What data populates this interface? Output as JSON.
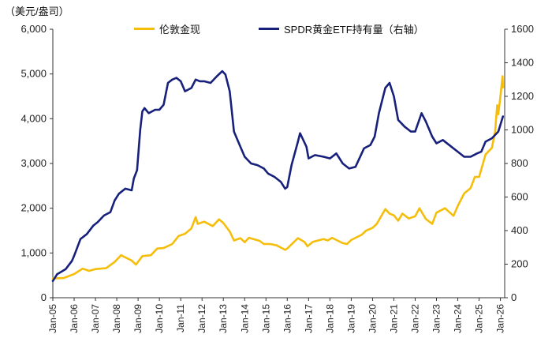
{
  "chart_data": {
    "type": "line",
    "unit_label": "（美元/盎司）",
    "x_ticks": [
      "Jan-05",
      "Jan-06",
      "Jan-07",
      "Jan-08",
      "Jan-09",
      "Jan-10",
      "Jan-11",
      "Jan-12",
      "Jan-13",
      "Jan-14",
      "Jan-15",
      "Jan-16",
      "Jan-17",
      "Jan-18",
      "Jan-19",
      "Jan-20",
      "Jan-21",
      "Jan-22",
      "Jan-23",
      "Jan-24",
      "Jan-25",
      "Jan-26"
    ],
    "x_range": [
      2005.0,
      2026.2
    ],
    "y_left": {
      "range": [
        0,
        6000
      ],
      "ticks": [
        "0",
        "1,000",
        "2,000",
        "3,000",
        "4,000",
        "5,000",
        "6,000"
      ]
    },
    "y_right": {
      "range": [
        0,
        1600
      ],
      "ticks": [
        "0",
        "200",
        "400",
        "600",
        "800",
        "1000",
        "1200",
        "1400",
        "1600"
      ]
    },
    "series": [
      {
        "name": "伦敦金现",
        "axis": "left",
        "color": "#F5BE0B",
        "points": [
          [
            2005.0,
            430
          ],
          [
            2005.5,
            440
          ],
          [
            2006.0,
            530
          ],
          [
            2006.4,
            650
          ],
          [
            2006.7,
            600
          ],
          [
            2007.0,
            640
          ],
          [
            2007.5,
            660
          ],
          [
            2007.9,
            800
          ],
          [
            2008.2,
            950
          ],
          [
            2008.7,
            830
          ],
          [
            2008.9,
            740
          ],
          [
            2009.2,
            930
          ],
          [
            2009.6,
            950
          ],
          [
            2009.9,
            1100
          ],
          [
            2010.2,
            1110
          ],
          [
            2010.6,
            1200
          ],
          [
            2010.9,
            1380
          ],
          [
            2011.2,
            1430
          ],
          [
            2011.5,
            1550
          ],
          [
            2011.7,
            1800
          ],
          [
            2011.8,
            1650
          ],
          [
            2012.1,
            1700
          ],
          [
            2012.5,
            1600
          ],
          [
            2012.8,
            1750
          ],
          [
            2013.0,
            1670
          ],
          [
            2013.3,
            1480
          ],
          [
            2013.5,
            1280
          ],
          [
            2013.8,
            1330
          ],
          [
            2014.0,
            1240
          ],
          [
            2014.2,
            1340
          ],
          [
            2014.7,
            1270
          ],
          [
            2014.9,
            1200
          ],
          [
            2015.2,
            1200
          ],
          [
            2015.5,
            1170
          ],
          [
            2015.9,
            1070
          ],
          [
            2016.0,
            1100
          ],
          [
            2016.5,
            1330
          ],
          [
            2016.8,
            1250
          ],
          [
            2016.95,
            1150
          ],
          [
            2017.2,
            1250
          ],
          [
            2017.7,
            1310
          ],
          [
            2017.9,
            1280
          ],
          [
            2018.1,
            1340
          ],
          [
            2018.6,
            1220
          ],
          [
            2018.8,
            1200
          ],
          [
            2019.0,
            1290
          ],
          [
            2019.5,
            1410
          ],
          [
            2019.7,
            1500
          ],
          [
            2020.0,
            1560
          ],
          [
            2020.2,
            1650
          ],
          [
            2020.6,
            1980
          ],
          [
            2020.8,
            1880
          ],
          [
            2021.0,
            1840
          ],
          [
            2021.2,
            1720
          ],
          [
            2021.4,
            1880
          ],
          [
            2021.7,
            1770
          ],
          [
            2022.0,
            1820
          ],
          [
            2022.2,
            2000
          ],
          [
            2022.5,
            1760
          ],
          [
            2022.8,
            1650
          ],
          [
            2023.0,
            1900
          ],
          [
            2023.4,
            2000
          ],
          [
            2023.8,
            1830
          ],
          [
            2024.0,
            2050
          ],
          [
            2024.3,
            2330
          ],
          [
            2024.6,
            2450
          ],
          [
            2024.8,
            2700
          ],
          [
            2025.0,
            2700
          ],
          [
            2025.3,
            3200
          ],
          [
            2025.6,
            3350
          ],
          [
            2025.75,
            3700
          ],
          [
            2025.85,
            4300
          ],
          [
            2025.9,
            4100
          ],
          [
            2026.0,
            4500
          ],
          [
            2026.1,
            4950
          ],
          [
            2026.12,
            4700
          ]
        ]
      },
      {
        "name": "SPDR黄金ETF持有量（右轴）",
        "axis": "right",
        "color": "#17207A",
        "points": [
          [
            2005.0,
            100
          ],
          [
            2005.2,
            140
          ],
          [
            2005.6,
            170
          ],
          [
            2005.9,
            220
          ],
          [
            2006.0,
            250
          ],
          [
            2006.3,
            350
          ],
          [
            2006.6,
            380
          ],
          [
            2006.9,
            430
          ],
          [
            2007.1,
            450
          ],
          [
            2007.4,
            490
          ],
          [
            2007.7,
            510
          ],
          [
            2007.9,
            580
          ],
          [
            2008.1,
            620
          ],
          [
            2008.4,
            650
          ],
          [
            2008.7,
            640
          ],
          [
            2008.8,
            710
          ],
          [
            2008.95,
            760
          ],
          [
            2009.1,
            1000
          ],
          [
            2009.2,
            1110
          ],
          [
            2009.3,
            1130
          ],
          [
            2009.5,
            1100
          ],
          [
            2009.8,
            1120
          ],
          [
            2010.0,
            1120
          ],
          [
            2010.2,
            1150
          ],
          [
            2010.4,
            1280
          ],
          [
            2010.6,
            1300
          ],
          [
            2010.8,
            1310
          ],
          [
            2011.0,
            1290
          ],
          [
            2011.2,
            1230
          ],
          [
            2011.5,
            1250
          ],
          [
            2011.7,
            1300
          ],
          [
            2011.9,
            1290
          ],
          [
            2012.1,
            1290
          ],
          [
            2012.4,
            1280
          ],
          [
            2012.7,
            1320
          ],
          [
            2012.95,
            1350
          ],
          [
            2013.1,
            1330
          ],
          [
            2013.3,
            1230
          ],
          [
            2013.5,
            990
          ],
          [
            2013.8,
            900
          ],
          [
            2014.0,
            840
          ],
          [
            2014.3,
            800
          ],
          [
            2014.6,
            790
          ],
          [
            2014.9,
            770
          ],
          [
            2015.1,
            740
          ],
          [
            2015.4,
            720
          ],
          [
            2015.7,
            690
          ],
          [
            2015.9,
            650
          ],
          [
            2016.0,
            660
          ],
          [
            2016.2,
            790
          ],
          [
            2016.5,
            930
          ],
          [
            2016.6,
            980
          ],
          [
            2016.9,
            900
          ],
          [
            2017.0,
            830
          ],
          [
            2017.3,
            850
          ],
          [
            2017.7,
            840
          ],
          [
            2018.0,
            830
          ],
          [
            2018.3,
            860
          ],
          [
            2018.6,
            800
          ],
          [
            2018.9,
            770
          ],
          [
            2019.2,
            780
          ],
          [
            2019.6,
            890
          ],
          [
            2019.9,
            910
          ],
          [
            2020.1,
            960
          ],
          [
            2020.3,
            1100
          ],
          [
            2020.6,
            1250
          ],
          [
            2020.8,
            1280
          ],
          [
            2021.0,
            1200
          ],
          [
            2021.2,
            1060
          ],
          [
            2021.5,
            1020
          ],
          [
            2021.8,
            990
          ],
          [
            2022.0,
            990
          ],
          [
            2022.3,
            1100
          ],
          [
            2022.5,
            1050
          ],
          [
            2022.8,
            960
          ],
          [
            2023.0,
            920
          ],
          [
            2023.3,
            940
          ],
          [
            2023.7,
            900
          ],
          [
            2024.0,
            870
          ],
          [
            2024.3,
            840
          ],
          [
            2024.6,
            840
          ],
          [
            2024.9,
            860
          ],
          [
            2025.1,
            870
          ],
          [
            2025.3,
            930
          ],
          [
            2025.6,
            950
          ],
          [
            2025.9,
            990
          ],
          [
            2026.12,
            1080
          ]
        ]
      }
    ]
  }
}
